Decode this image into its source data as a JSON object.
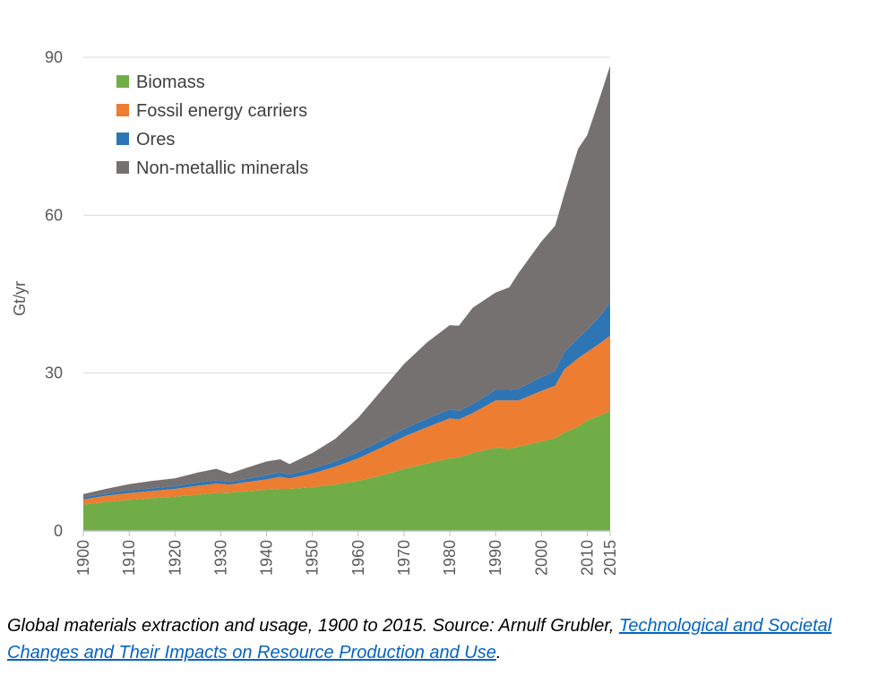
{
  "chart_data": {
    "type": "area",
    "stacked": true,
    "ylabel": "Gt/yr",
    "ylim": [
      0,
      90
    ],
    "yticks": [
      "0",
      "30",
      "60",
      "90"
    ],
    "xlim": [
      1900,
      2015
    ],
    "xticks": [
      "1900",
      "1910",
      "1920",
      "1930",
      "1940",
      "1950",
      "1960",
      "1970",
      "1980",
      "1990",
      "2000",
      "2010",
      "2015"
    ],
    "grid": true,
    "legend_position": "top-left",
    "x": [
      1900,
      1905,
      1910,
      1915,
      1920,
      1925,
      1929,
      1932,
      1935,
      1940,
      1943,
      1945,
      1950,
      1955,
      1960,
      1965,
      1970,
      1975,
      1980,
      1982,
      1985,
      1990,
      1993,
      1995,
      2000,
      2003,
      2005,
      2008,
      2010,
      2013,
      2015
    ],
    "series": [
      {
        "name": "Biomass",
        "color": "#70ad47",
        "values": [
          5.0,
          5.5,
          5.9,
          6.2,
          6.5,
          6.9,
          7.2,
          7.3,
          7.5,
          7.8,
          8.0,
          8.0,
          8.3,
          8.8,
          9.5,
          10.5,
          11.8,
          12.8,
          13.8,
          14.0,
          14.8,
          15.8,
          15.6,
          16.0,
          17.0,
          17.6,
          18.7,
          19.8,
          21.0,
          22.0,
          22.8
        ]
      },
      {
        "name": "Fossil energy carriers",
        "color": "#ed7d31",
        "values": [
          1.0,
          1.2,
          1.3,
          1.4,
          1.5,
          1.7,
          1.8,
          1.5,
          1.7,
          2.0,
          2.3,
          2.0,
          2.6,
          3.4,
          4.3,
          5.3,
          6.1,
          6.9,
          7.6,
          7.2,
          7.6,
          9.0,
          9.2,
          8.8,
          9.6,
          10.0,
          12.0,
          13.0,
          13.0,
          13.8,
          14.3
        ]
      },
      {
        "name": "Ores",
        "color": "#2e75b6",
        "values": [
          0.4,
          0.4,
          0.5,
          0.5,
          0.5,
          0.6,
          0.6,
          0.5,
          0.6,
          0.8,
          0.8,
          0.7,
          0.9,
          1.0,
          1.2,
          1.3,
          1.5,
          1.6,
          1.7,
          1.6,
          1.7,
          2.0,
          2.0,
          2.2,
          2.6,
          2.8,
          3.3,
          3.8,
          4.2,
          5.2,
          6.4
        ]
      },
      {
        "name": "Non-metallic minerals",
        "color": "#767171",
        "values": [
          0.6,
          0.9,
          1.2,
          1.4,
          1.5,
          1.9,
          2.2,
          1.6,
          2.0,
          2.6,
          2.5,
          2.0,
          3.0,
          4.3,
          6.5,
          9.5,
          12.3,
          14.5,
          16.0,
          16.2,
          18.3,
          18.5,
          19.5,
          22.0,
          25.8,
          27.6,
          30.0,
          36.0,
          37.0,
          42.0,
          44.9
        ]
      }
    ]
  },
  "caption": {
    "text_before": "Global materials extraction and usage, 1900 to 2015. Source: Arnulf Grubler, ",
    "link_text": "Technological and Societal Changes and Their Impacts on Resource Production and Use",
    "text_after": "."
  }
}
